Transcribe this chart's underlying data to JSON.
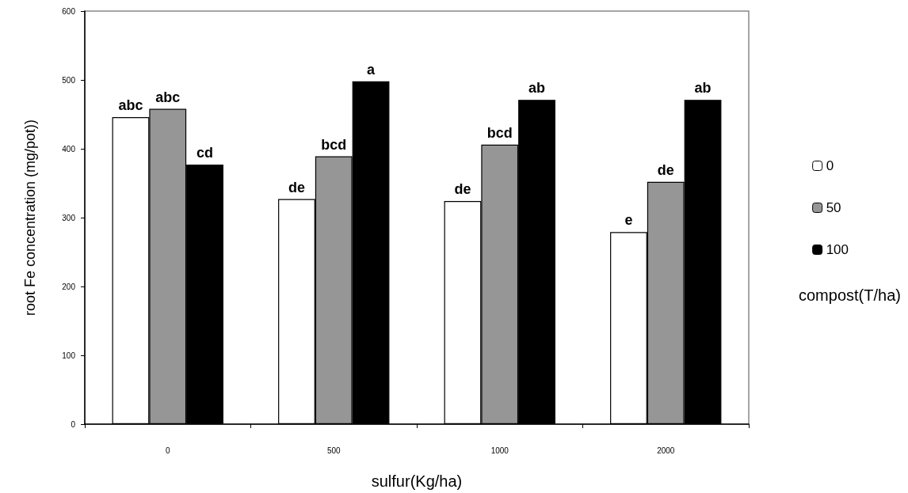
{
  "chart_data": {
    "type": "bar",
    "xlabel": "sulfur(Kg/ha)",
    "ylabel": "root Fe concentration (mg/pot))",
    "legend_title": "compost(T/ha)",
    "categories": [
      "0",
      "500",
      "1000",
      "2000"
    ],
    "series": [
      {
        "name": "0",
        "color": "#ffffff",
        "values": [
          446,
          327,
          324,
          279
        ],
        "value_labels": [
          "abc",
          "de",
          "de",
          "e"
        ]
      },
      {
        "name": "50",
        "color": "#969696",
        "values": [
          458,
          389,
          406,
          352
        ],
        "value_labels": [
          "abc",
          "bcd",
          "bcd",
          "de"
        ]
      },
      {
        "name": "100",
        "color": "#000000",
        "values": [
          377,
          498,
          471,
          471
        ],
        "value_labels": [
          "cd",
          "a",
          "ab",
          "ab"
        ]
      }
    ],
    "ylim": [
      0,
      600
    ],
    "yticks": [
      0,
      100,
      200,
      300,
      400,
      500,
      600
    ],
    "grid": false,
    "legend": "right"
  }
}
